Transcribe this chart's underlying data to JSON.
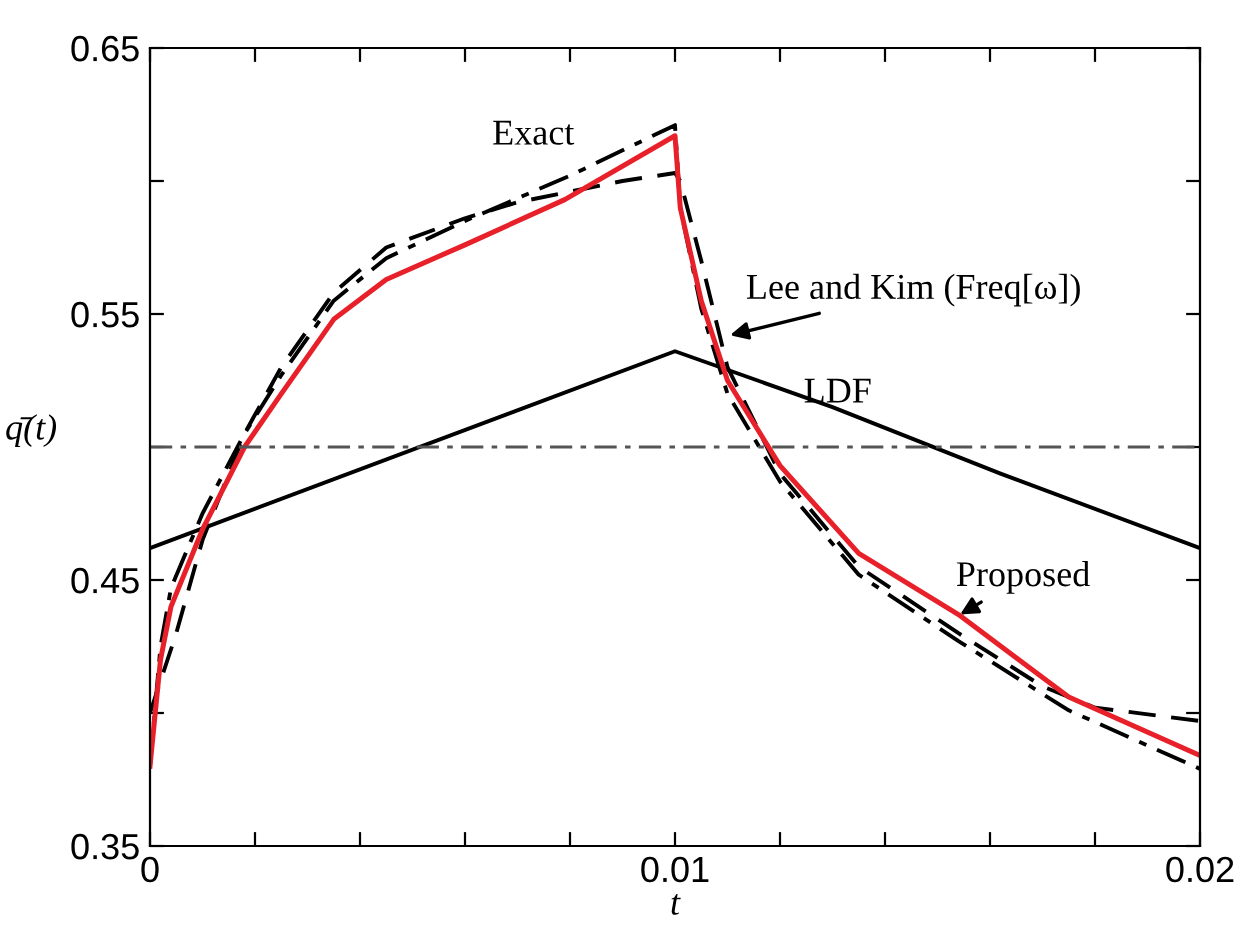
{
  "chart_data": {
    "type": "line",
    "xlabel": "t",
    "ylabel": "q̄(t)",
    "xlim": [
      0,
      0.02
    ],
    "ylim": [
      0.35,
      0.65
    ],
    "xticks": [
      0,
      {
        "value": 0.002,
        "label": null
      },
      {
        "value": 0.004,
        "label": null
      },
      {
        "value": 0.006,
        "label": null
      },
      {
        "value": 0.008,
        "label": null
      },
      0.01,
      {
        "value": 0.012,
        "label": null
      },
      {
        "value": 0.014,
        "label": null
      },
      {
        "value": 0.016,
        "label": null
      },
      {
        "value": 0.018,
        "label": null
      },
      0.02
    ],
    "yticks": [
      0.35,
      {
        "value": 0.4,
        "label": null
      },
      0.45,
      {
        "value": 0.5,
        "label": null
      },
      0.55,
      {
        "value": 0.6,
        "label": null
      },
      0.65
    ],
    "grid": false,
    "legend": false,
    "marker": "none",
    "series": [
      {
        "color": "#000000",
        "line_style": "dashdot",
        "x": [
          0,
          0.0002,
          0.0004,
          0.001,
          0.0018,
          0.0025,
          0.0035,
          0.0045,
          0.006,
          0.008,
          0.01,
          0.0101,
          0.0105,
          0.011,
          0.012,
          0.0135,
          0.0154,
          0.0175,
          0.02
        ],
        "values": [
          0.38,
          0.425,
          0.447,
          0.475,
          0.505,
          0.527,
          0.555,
          0.571,
          0.585,
          0.602,
          0.621,
          0.59,
          0.552,
          0.52,
          0.487,
          0.452,
          0.427,
          0.401,
          0.379
        ]
      },
      {
        "color": "#000000",
        "line_style": "dashed",
        "x": [
          0,
          0.0005,
          0.001,
          0.0018,
          0.0025,
          0.0035,
          0.0045,
          0.006,
          0.007,
          0.008,
          0.009,
          0.01,
          0.0101,
          0.0105,
          0.011,
          0.012,
          0.0135,
          0.0154,
          0.017,
          0.018,
          0.02
        ],
        "values": [
          0.4,
          0.43,
          0.465,
          0.505,
          0.53,
          0.558,
          0.575,
          0.586,
          0.592,
          0.596,
          0.6,
          0.603,
          0.6,
          0.57,
          0.53,
          0.49,
          0.455,
          0.43,
          0.41,
          0.402,
          0.397
        ]
      },
      {
        "color": "#000000",
        "line_style": "solid",
        "x": [
          0,
          0.01,
          0.013,
          0.0162,
          0.02
        ],
        "values": [
          0.462,
          0.536,
          0.515,
          0.49,
          0.462
        ]
      },
      {
        "color": "#e8202a",
        "line_style": "solid",
        "x": [
          0,
          0.0002,
          0.0004,
          0.001,
          0.0018,
          0.0025,
          0.0035,
          0.0045,
          0.006,
          0.0079,
          0.01,
          0.0101,
          0.0105,
          0.011,
          0.012,
          0.0135,
          0.0154,
          0.0175,
          0.02
        ],
        "values": [
          0.38,
          0.42,
          0.44,
          0.469,
          0.5,
          0.52,
          0.548,
          0.563,
          0.576,
          0.593,
          0.617,
          0.59,
          0.555,
          0.525,
          0.493,
          0.46,
          0.437,
          0.406,
          0.384
        ]
      }
    ],
    "ref_lines": [
      {
        "axis": "y",
        "value": 0.5,
        "color": "#555555",
        "line_style": "dashdot"
      }
    ],
    "annotations": [
      {
        "text": "Exact",
        "x": 0.0065,
        "y": 0.592
      },
      {
        "text": "Lee and Kim (Freq[ω])",
        "x": 0.01105,
        "y": 0.542
      },
      {
        "text": "LDF",
        "x": 0.0135,
        "y": 0.512
      },
      {
        "text": "Proposed",
        "x": 0.01543,
        "y": 0.437
      }
    ]
  }
}
